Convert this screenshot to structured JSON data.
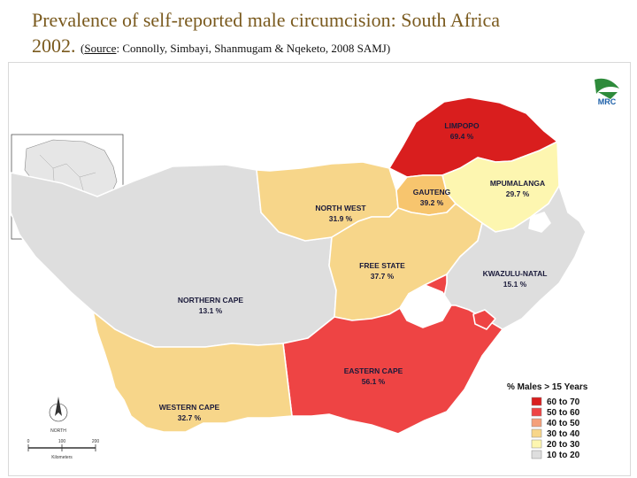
{
  "title": {
    "line1": "Prevalence of self-reported male circumcision: South Africa",
    "line2": "2002.",
    "source_label": "Source",
    "source_rest": ": Connolly, Simbayi, Shanmugam & Nqeketo, 2008 SAMJ)",
    "source_open": "("
  },
  "logo": {
    "text": "MRC"
  },
  "provinces": [
    {
      "name": "LIMPOPO",
      "value": "69.4 %",
      "value_num": 69.4,
      "color": "#d91e1e"
    },
    {
      "name": "MPUMALANGA",
      "value": "29.7 %",
      "value_num": 29.7,
      "color": "#fdf6b0"
    },
    {
      "name": "GAUTENG",
      "value": "39.2 %",
      "value_num": 39.2,
      "color": "#f7c56e"
    },
    {
      "name": "NORTH WEST",
      "value": "31.9 %",
      "value_num": 31.9,
      "color": "#f7d68a"
    },
    {
      "name": "FREE STATE",
      "value": "37.7 %",
      "value_num": 37.7,
      "color": "#f7d68a"
    },
    {
      "name": "KWAZULU-NATAL",
      "value": "15.1 %",
      "value_num": 15.1,
      "color": "#dedede"
    },
    {
      "name": "NORTHERN CAPE",
      "value": "13.1 %",
      "value_num": 13.1,
      "color": "#dedede"
    },
    {
      "name": "EASTERN CAPE",
      "value": "56.1 %",
      "value_num": 56.1,
      "color": "#ee4444"
    },
    {
      "name": "WESTERN CAPE",
      "value": "32.7 %",
      "value_num": 32.7,
      "color": "#f7d68a"
    }
  ],
  "legend": {
    "title": "% Males > 15 Years",
    "items": [
      {
        "label": "60 to 70",
        "color": "#d91e1e"
      },
      {
        "label": "50 to 60",
        "color": "#ee4444"
      },
      {
        "label": "40 to 50",
        "color": "#f4a07a"
      },
      {
        "label": "30 to 40",
        "color": "#f7d68a"
      },
      {
        "label": "20 to 30",
        "color": "#fdf6b0"
      },
      {
        "label": "10 to 20",
        "color": "#dedede"
      }
    ]
  },
  "scale": {
    "north": "NORTH",
    "ticks": [
      "0",
      "100",
      "200"
    ],
    "unit": "Kilometers"
  }
}
